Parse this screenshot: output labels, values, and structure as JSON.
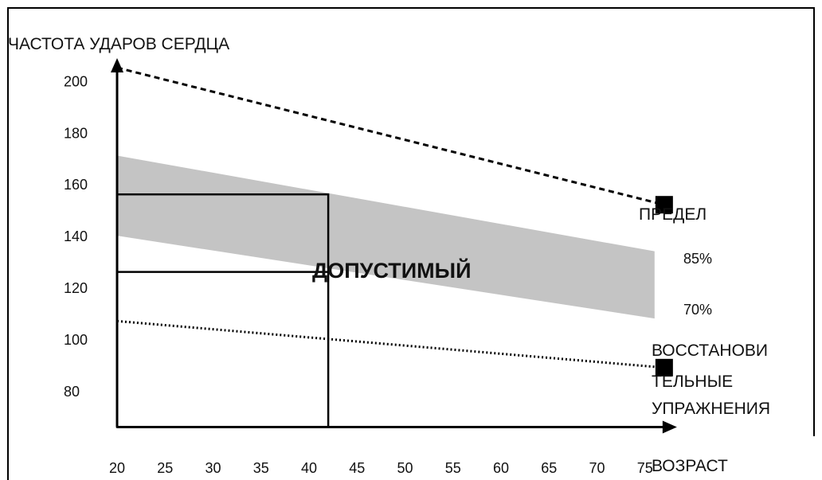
{
  "chart_data": {
    "type": "line",
    "ylabel": "ЧАСТОТА УДАРОВ СЕРДЦА",
    "xlabel": "ВОЗРАСТ",
    "x_ticks": [
      20,
      25,
      30,
      35,
      40,
      45,
      50,
      55,
      60,
      65,
      70,
      75
    ],
    "y_ticks": [
      80,
      100,
      120,
      140,
      160,
      180,
      200
    ],
    "xlim": [
      20,
      77
    ],
    "ylim": [
      66,
      205
    ],
    "series": [
      {
        "name": "ПРЕДЕЛ",
        "style": "dashed",
        "points": [
          [
            20,
            205
          ],
          [
            77,
            152
          ]
        ]
      },
      {
        "name": "85%",
        "style": "band-upper",
        "points": [
          [
            20,
            171
          ],
          [
            76,
            134
          ]
        ]
      },
      {
        "name": "70%",
        "style": "band-lower",
        "points": [
          [
            20,
            140
          ],
          [
            76,
            108
          ]
        ]
      },
      {
        "name": "ВОССТАНОВИТЕЛЬНЫЕ УПРАЖНЕНИЯ",
        "style": "dotted",
        "points": [
          [
            20,
            107
          ],
          [
            77,
            89
          ]
        ]
      }
    ],
    "zone_label": "ДОПУСТИМЫЙ",
    "example_age": 42,
    "example_range": [
      126,
      156
    ],
    "labels": {
      "limit": "ПРЕДЕЛ",
      "pct85": "85%",
      "pct70": "70%",
      "recovery_line1": "ВОССТАНОВИ",
      "recovery_line2": "ТЕЛЬНЫЕ",
      "recovery_line3": "УПРАЖНЕНИЯ"
    },
    "colors": {
      "band": "#c4c4c4",
      "line": "#000000",
      "marker": "#000000"
    }
  }
}
